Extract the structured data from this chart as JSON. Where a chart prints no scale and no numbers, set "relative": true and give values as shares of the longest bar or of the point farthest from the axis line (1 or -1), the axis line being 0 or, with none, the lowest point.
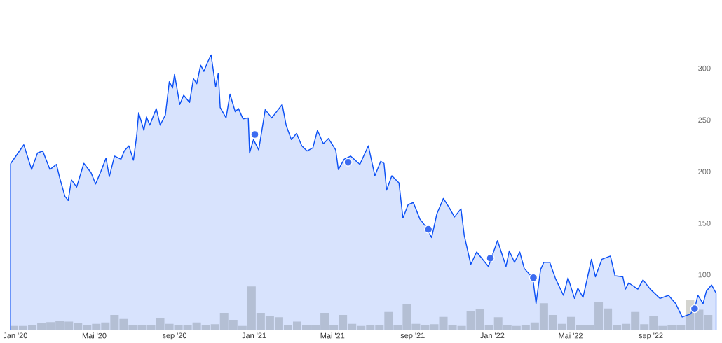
{
  "chart_data": [
    {
      "type": "area",
      "xlim": [
        "2019-12-24",
        "2022-12-11"
      ],
      "xticks": [
        {
          "value": "2020-01-01",
          "label": "Jan '20"
        },
        {
          "value": "2020-05-01",
          "label": "Mai '20"
        },
        {
          "value": "2020-09-01",
          "label": "sep '20"
        },
        {
          "value": "2021-01-01",
          "label": "Jan '21"
        },
        {
          "value": "2021-05-01",
          "label": "Mai '21"
        },
        {
          "value": "2021-09-01",
          "label": "sep '21"
        },
        {
          "value": "2022-01-01",
          "label": "Jan '22"
        },
        {
          "value": "2022-05-01",
          "label": "Mai '22"
        },
        {
          "value": "2022-09-01",
          "label": "sep '22"
        }
      ],
      "ylim": [
        46,
        366
      ],
      "yticks": [
        100,
        150,
        200,
        250,
        300
      ],
      "series": [
        {
          "color": "#0b50f5",
          "marker": "none",
          "x": [
            "2019-12-24",
            "2020-01-14",
            "2020-01-26",
            "2020-02-04",
            "2020-02-12",
            "2020-02-23",
            "2020-03-04",
            "2020-03-09",
            "2020-03-17",
            "2020-03-22",
            "2020-03-27",
            "2020-04-04",
            "2020-04-15",
            "2020-04-26",
            "2020-05-03",
            "2020-05-11",
            "2020-05-19",
            "2020-05-24",
            "2020-06-01",
            "2020-06-11",
            "2020-06-16",
            "2020-06-23",
            "2020-06-30",
            "2020-07-05",
            "2020-07-08",
            "2020-07-16",
            "2020-07-20",
            "2020-07-25",
            "2020-08-04",
            "2020-08-10",
            "2020-08-18",
            "2020-08-24",
            "2020-08-29",
            "2020-09-01",
            "2020-09-09",
            "2020-09-15",
            "2020-09-24",
            "2020-09-30",
            "2020-10-05",
            "2020-10-11",
            "2020-10-16",
            "2020-10-21",
            "2020-10-27",
            "2020-11-03",
            "2020-11-07",
            "2020-11-10",
            "2020-11-19",
            "2020-11-25",
            "2020-12-03",
            "2020-12-08",
            "2020-12-15",
            "2020-12-23",
            "2020-12-25",
            "2020-12-31",
            "2021-01-08",
            "2021-01-18",
            "2021-01-28",
            "2021-02-13",
            "2021-02-19",
            "2021-02-27",
            "2021-03-07",
            "2021-03-15",
            "2021-03-23",
            "2021-04-01",
            "2021-04-08",
            "2021-04-17",
            "2021-04-25",
            "2021-05-06",
            "2021-05-10",
            "2021-05-19",
            "2021-05-29",
            "2021-06-12",
            "2021-06-25",
            "2021-07-05",
            "2021-07-14",
            "2021-07-19",
            "2021-07-23",
            "2021-07-31",
            "2021-08-11",
            "2021-08-17",
            "2021-08-25",
            "2021-09-02",
            "2021-09-12",
            "2021-09-22",
            "2021-09-30",
            "2021-10-08",
            "2021-10-18",
            "2021-10-27",
            "2021-11-04",
            "2021-11-14",
            "2021-11-19",
            "2021-11-29",
            "2021-12-08",
            "2021-12-26",
            "2022-01-09",
            "2022-01-22",
            "2022-01-27",
            "2022-02-04",
            "2022-02-12",
            "2022-02-19",
            "2022-03-04",
            "2022-03-09",
            "2022-03-16",
            "2022-03-21",
            "2022-03-30",
            "2022-04-08",
            "2022-04-20",
            "2022-04-27",
            "2022-05-07",
            "2022-05-12",
            "2022-05-20",
            "2022-05-25",
            "2022-06-02",
            "2022-06-08",
            "2022-06-18",
            "2022-07-01",
            "2022-07-08",
            "2022-07-20",
            "2022-07-24",
            "2022-07-29",
            "2022-08-12",
            "2022-08-20",
            "2022-08-31",
            "2022-09-15",
            "2022-09-28",
            "2022-10-09",
            "2022-10-19",
            "2022-11-01",
            "2022-11-09",
            "2022-11-12",
            "2022-11-20",
            "2022-11-25",
            "2022-12-03",
            "2022-12-10"
          ],
          "values": [
            207,
            226,
            202,
            218,
            220,
            202,
            207,
            194,
            176,
            172,
            192,
            185,
            208,
            199,
            188,
            200,
            213,
            195,
            215,
            212,
            220,
            225,
            211,
            235,
            257,
            240,
            253,
            245,
            261,
            245,
            255,
            287,
            281,
            294,
            265,
            274,
            267,
            290,
            285,
            303,
            297,
            305,
            313,
            282,
            295,
            262,
            252,
            275,
            258,
            261,
            251,
            252,
            218,
            231,
            221,
            260,
            252,
            265,
            245,
            231,
            237,
            225,
            220,
            223,
            240,
            227,
            232,
            221,
            202,
            212,
            215,
            207,
            225,
            196,
            210,
            208,
            182,
            196,
            189,
            155,
            168,
            170,
            154,
            146,
            136,
            159,
            174,
            165,
            156,
            164,
            138,
            110,
            122,
            108,
            133,
            108,
            123,
            112,
            122,
            106,
            97,
            72,
            105,
            112,
            112,
            96,
            80,
            97,
            77,
            87,
            78,
            92,
            115,
            98,
            115,
            118,
            99,
            98,
            86,
            92,
            86,
            95,
            86,
            77,
            80,
            72,
            59,
            62,
            72,
            80,
            72,
            84,
            90,
            82
          ]
        },
        {
          "type": "scatter",
          "color": "#3d6cf0",
          "marker": "circle",
          "x": [
            "2021-01-02",
            "2021-05-25",
            "2021-09-25",
            "2021-12-29",
            "2022-03-05",
            "2022-11-07"
          ],
          "values": [
            236,
            209,
            144,
            116,
            97,
            67
          ]
        }
      ]
    },
    {
      "type": "bar",
      "relative": true,
      "color": "#d4d4cf",
      "xlim": [
        "2019-12-24",
        "2022-12-11"
      ],
      "x": [
        "2019-12-30",
        "2020-01-13",
        "2020-01-27",
        "2020-02-10",
        "2020-02-24",
        "2020-03-09",
        "2020-03-23",
        "2020-04-06",
        "2020-04-20",
        "2020-05-04",
        "2020-05-18",
        "2020-06-01",
        "2020-06-15",
        "2020-06-29",
        "2020-07-13",
        "2020-07-27",
        "2020-08-10",
        "2020-08-24",
        "2020-09-07",
        "2020-09-21",
        "2020-10-05",
        "2020-10-19",
        "2020-11-02",
        "2020-11-16",
        "2020-11-30",
        "2020-12-14",
        "2020-12-28",
        "2021-01-11",
        "2021-01-25",
        "2021-02-08",
        "2021-02-22",
        "2021-03-08",
        "2021-03-22",
        "2021-04-05",
        "2021-04-19",
        "2021-05-03",
        "2021-05-17",
        "2021-05-31",
        "2021-06-14",
        "2021-06-28",
        "2021-07-12",
        "2021-07-26",
        "2021-08-09",
        "2021-08-23",
        "2021-09-06",
        "2021-09-20",
        "2021-10-04",
        "2021-10-18",
        "2021-11-01",
        "2021-11-15",
        "2021-11-29",
        "2021-12-13",
        "2021-12-27",
        "2022-01-10",
        "2022-01-24",
        "2022-02-07",
        "2022-02-21",
        "2022-03-07",
        "2022-03-21",
        "2022-04-04",
        "2022-04-18",
        "2022-05-02",
        "2022-05-16",
        "2022-05-30",
        "2022-06-13",
        "2022-06-27",
        "2022-07-11",
        "2022-07-25",
        "2022-08-08",
        "2022-08-22",
        "2022-09-05",
        "2022-09-19",
        "2022-10-03",
        "2022-10-17",
        "2022-10-31",
        "2022-11-14",
        "2022-11-28"
      ],
      "values": [
        0.1,
        0.1,
        0.12,
        0.17,
        0.19,
        0.21,
        0.2,
        0.16,
        0.13,
        0.15,
        0.18,
        0.35,
        0.26,
        0.12,
        0.12,
        0.13,
        0.28,
        0.15,
        0.12,
        0.13,
        0.18,
        0.12,
        0.14,
        0.4,
        0.24,
        0.1,
        1.0,
        0.4,
        0.33,
        0.3,
        0.12,
        0.2,
        0.12,
        0.13,
        0.4,
        0.13,
        0.35,
        0.15,
        0.1,
        0.12,
        0.12,
        0.42,
        0.12,
        0.6,
        0.15,
        0.12,
        0.14,
        0.31,
        0.12,
        0.1,
        0.43,
        0.48,
        0.12,
        0.3,
        0.12,
        0.1,
        0.12,
        0.18,
        0.62,
        0.35,
        0.15,
        0.31,
        0.12,
        0.12,
        0.65,
        0.5,
        0.12,
        0.15,
        0.42,
        0.14,
        0.32,
        0.1,
        0.12,
        0.12,
        0.69,
        0.47,
        0.35
      ]
    }
  ]
}
